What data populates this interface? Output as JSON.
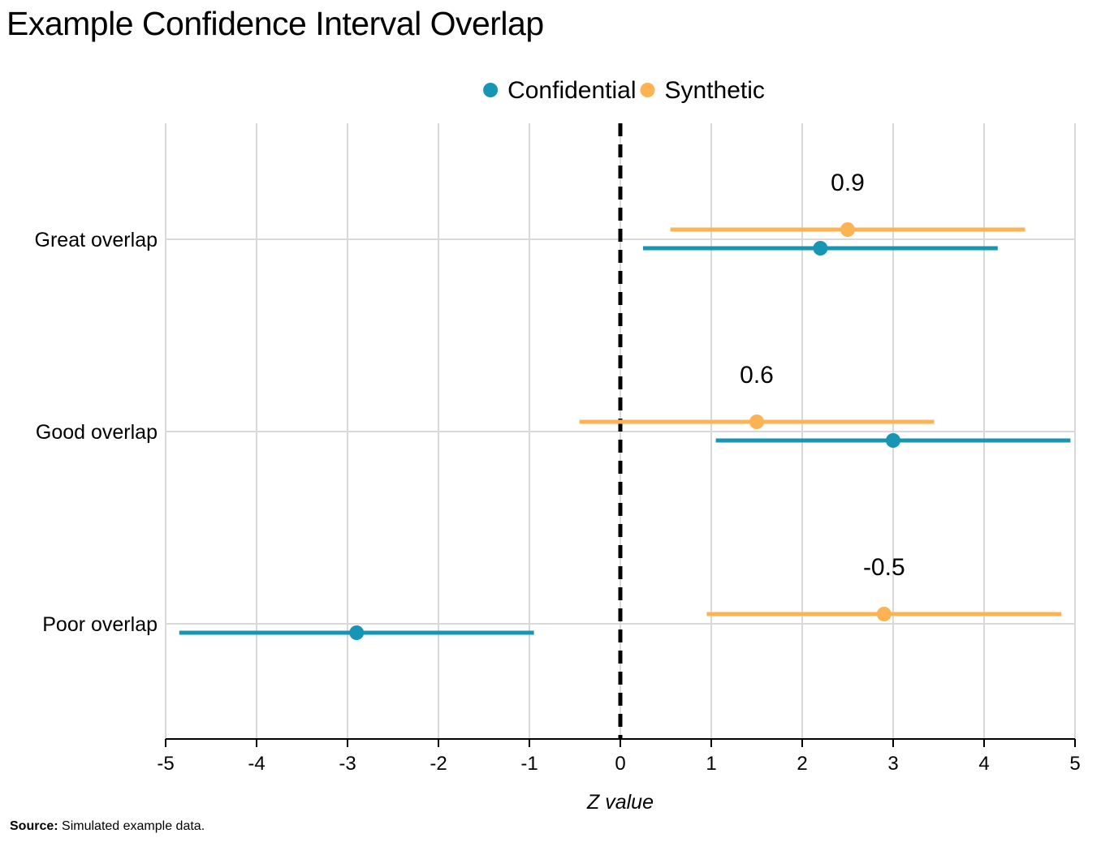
{
  "chart_data": {
    "type": "dot-interval",
    "title": "Example Confidence Interval Overlap",
    "xlabel": "Z value",
    "ylabel": "",
    "xlim": [
      -5,
      5
    ],
    "x_ticks": [
      "-5",
      "-4",
      "-3",
      "-2",
      "-1",
      "0",
      "1",
      "2",
      "3",
      "4",
      "5"
    ],
    "reference_line": {
      "x": 0,
      "style": "dashed"
    },
    "grid": true,
    "legend_position": "top-center",
    "categories": [
      "Great overlap",
      "Good overlap",
      "Poor overlap"
    ],
    "series": [
      {
        "name": "Confidential",
        "color": "#1696b4",
        "points": [
          {
            "category": "Great overlap",
            "estimate": 2.2,
            "lower": 0.25,
            "upper": 4.15
          },
          {
            "category": "Good overlap",
            "estimate": 3.0,
            "lower": 1.05,
            "upper": 4.95
          },
          {
            "category": "Poor overlap",
            "estimate": -2.9,
            "lower": -4.85,
            "upper": -0.95
          }
        ]
      },
      {
        "name": "Synthetic",
        "color": "#fdb353",
        "points": [
          {
            "category": "Great overlap",
            "estimate": 2.5,
            "lower": 0.55,
            "upper": 4.45
          },
          {
            "category": "Good overlap",
            "estimate": 1.5,
            "lower": -0.45,
            "upper": 3.45
          },
          {
            "category": "Poor overlap",
            "estimate": 2.9,
            "lower": 0.95,
            "upper": 4.85
          }
        ]
      }
    ],
    "annotations": [
      {
        "category": "Great overlap",
        "x": 2.5,
        "label": "0.9"
      },
      {
        "category": "Good overlap",
        "x": 1.5,
        "label": "0.6"
      },
      {
        "category": "Poor overlap",
        "x": 2.9,
        "label": "-0.5"
      }
    ]
  },
  "source": {
    "label": "Source:",
    "text": "Simulated example data."
  }
}
